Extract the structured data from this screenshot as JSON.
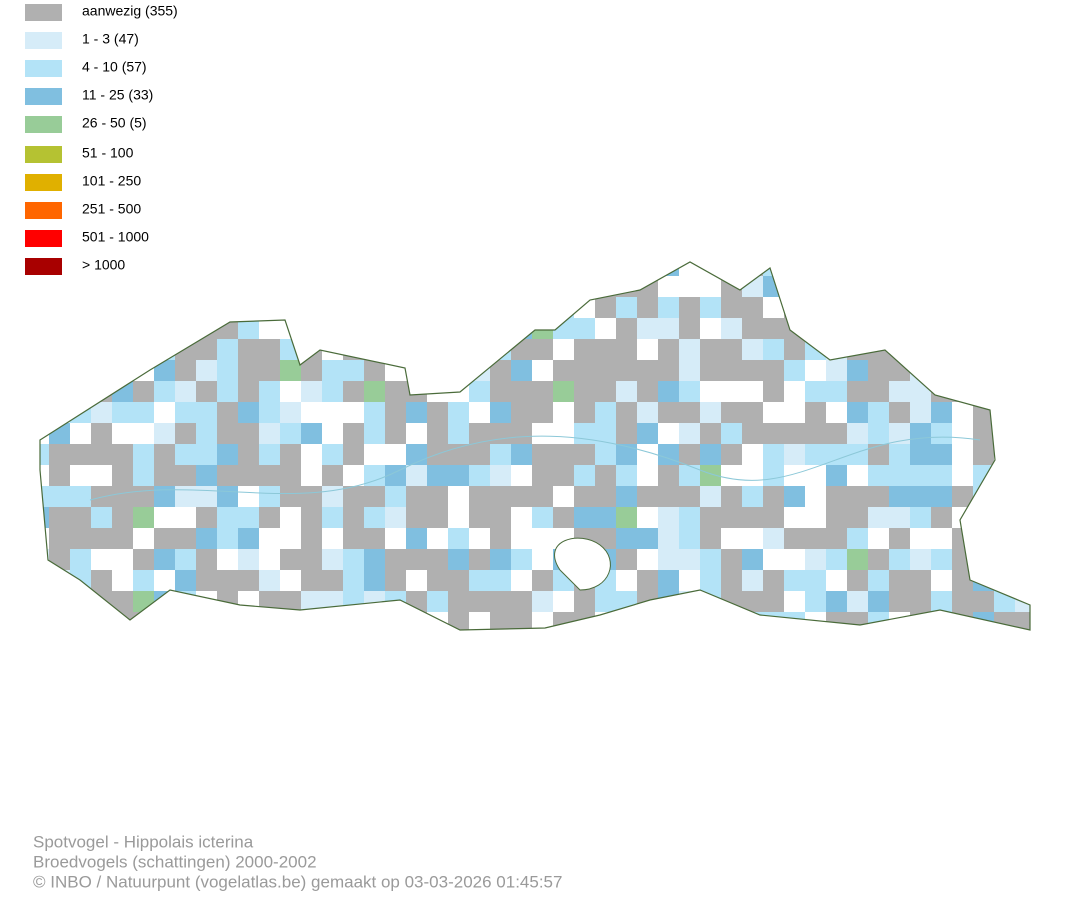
{
  "legend": [
    {
      "label": "aanwezig (355)",
      "color": "#b0b0b0"
    },
    {
      "label": "1 - 3 (47)",
      "color": "#d6ecf8"
    },
    {
      "label": "4 - 10 (57)",
      "color": "#b3e3f7"
    },
    {
      "label": "11 - 25 (33)",
      "color": "#80bfe0"
    },
    {
      "label": "26 - 50 (5)",
      "color": "#98cc98"
    },
    {
      "label": "51 - 100",
      "color": "#b5c232"
    },
    {
      "label": "101 - 250",
      "color": "#e0b000"
    },
    {
      "label": "251 - 500",
      "color": "#ff6600"
    },
    {
      "label": "501 - 1000",
      "color": "#ff0000"
    },
    {
      "label": "> 1000",
      "color": "#a80000"
    }
  ],
  "footer": {
    "species": "Spotvogel - Hippolais icterina",
    "dataset": "Broedvogels (schattingen) 2000-2002",
    "credit": "© INBO / Natuurpunt (vogelatlas.be) gemaakt op 03-03-2026 01:45:57"
  }
}
